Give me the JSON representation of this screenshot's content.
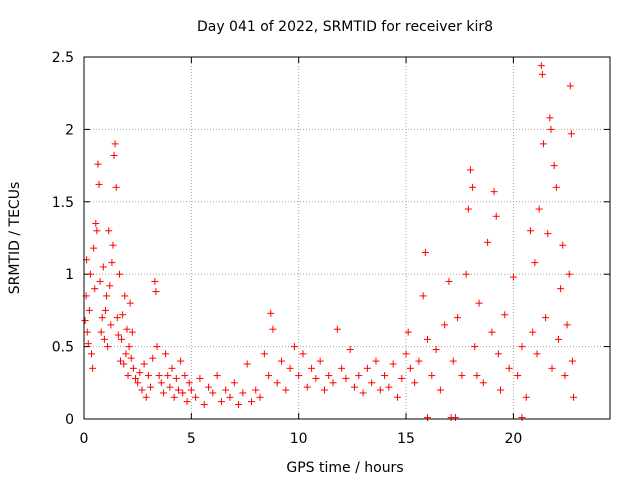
{
  "chart_data": {
    "type": "scatter",
    "title": "Day 041 of 2022, SRMTID for receiver kir8",
    "xlabel": "GPS time / hours",
    "ylabel": "SRMTID / TECUs",
    "xlim": [
      0,
      24.5
    ],
    "ylim": [
      0,
      2.5
    ],
    "xticks": [
      0,
      5,
      10,
      15,
      20
    ],
    "yticks": [
      0,
      0.5,
      1,
      1.5,
      2,
      2.5
    ],
    "xtick_labels": [
      "0",
      "5",
      "10",
      "15",
      "20"
    ],
    "ytick_labels": [
      "0",
      "0.5",
      "1",
      "1.5",
      "2",
      "2.5"
    ],
    "grid": true,
    "marker": "+",
    "color": "#ff0000",
    "series": [
      {
        "name": "SRMTID",
        "points": [
          [
            0.05,
            0.68
          ],
          [
            0.1,
            0.85
          ],
          [
            0.12,
            1.1
          ],
          [
            0.15,
            0.6
          ],
          [
            0.2,
            0.52
          ],
          [
            0.25,
            0.75
          ],
          [
            0.3,
            1.0
          ],
          [
            0.35,
            0.45
          ],
          [
            0.4,
            0.35
          ],
          [
            0.45,
            1.18
          ],
          [
            0.5,
            0.9
          ],
          [
            0.55,
            1.35
          ],
          [
            0.6,
            1.3
          ],
          [
            0.65,
            1.76
          ],
          [
            0.7,
            1.62
          ],
          [
            0.75,
            0.95
          ],
          [
            0.8,
            0.6
          ],
          [
            0.85,
            0.7
          ],
          [
            0.9,
            1.05
          ],
          [
            0.95,
            0.55
          ],
          [
            1.0,
            0.75
          ],
          [
            1.05,
            0.85
          ],
          [
            1.1,
            0.5
          ],
          [
            1.15,
            1.3
          ],
          [
            1.2,
            0.92
          ],
          [
            1.25,
            0.65
          ],
          [
            1.3,
            1.08
          ],
          [
            1.35,
            1.2
          ],
          [
            1.4,
            1.82
          ],
          [
            1.45,
            1.9
          ],
          [
            1.5,
            1.6
          ],
          [
            1.55,
            0.7
          ],
          [
            1.6,
            0.58
          ],
          [
            1.65,
            1.0
          ],
          [
            1.7,
            0.4
          ],
          [
            1.75,
            0.55
          ],
          [
            1.8,
            0.72
          ],
          [
            1.85,
            0.38
          ],
          [
            1.9,
            0.85
          ],
          [
            1.95,
            0.45
          ],
          [
            2.0,
            0.62
          ],
          [
            2.05,
            0.3
          ],
          [
            2.1,
            0.5
          ],
          [
            2.15,
            0.8
          ],
          [
            2.2,
            0.42
          ],
          [
            2.25,
            0.6
          ],
          [
            2.3,
            0.35
          ],
          [
            2.4,
            0.28
          ],
          [
            2.5,
            0.25
          ],
          [
            2.6,
            0.32
          ],
          [
            2.7,
            0.2
          ],
          [
            2.8,
            0.38
          ],
          [
            2.9,
            0.15
          ],
          [
            3.0,
            0.3
          ],
          [
            3.1,
            0.22
          ],
          [
            3.2,
            0.42
          ],
          [
            3.3,
            0.95
          ],
          [
            3.35,
            0.88
          ],
          [
            3.4,
            0.5
          ],
          [
            3.5,
            0.3
          ],
          [
            3.6,
            0.25
          ],
          [
            3.7,
            0.18
          ],
          [
            3.8,
            0.45
          ],
          [
            3.9,
            0.3
          ],
          [
            4.0,
            0.22
          ],
          [
            4.1,
            0.35
          ],
          [
            4.2,
            0.15
          ],
          [
            4.3,
            0.28
          ],
          [
            4.4,
            0.2
          ],
          [
            4.5,
            0.4
          ],
          [
            4.6,
            0.18
          ],
          [
            4.7,
            0.3
          ],
          [
            4.8,
            0.12
          ],
          [
            4.9,
            0.25
          ],
          [
            5.0,
            0.2
          ],
          [
            5.2,
            0.15
          ],
          [
            5.4,
            0.28
          ],
          [
            5.6,
            0.1
          ],
          [
            5.8,
            0.22
          ],
          [
            6.0,
            0.18
          ],
          [
            6.2,
            0.3
          ],
          [
            6.4,
            0.12
          ],
          [
            6.6,
            0.2
          ],
          [
            6.8,
            0.15
          ],
          [
            7.0,
            0.25
          ],
          [
            7.2,
            0.1
          ],
          [
            7.4,
            0.18
          ],
          [
            7.6,
            0.38
          ],
          [
            7.8,
            0.12
          ],
          [
            8.0,
            0.2
          ],
          [
            8.2,
            0.15
          ],
          [
            8.4,
            0.45
          ],
          [
            8.6,
            0.3
          ],
          [
            8.7,
            0.73
          ],
          [
            8.8,
            0.62
          ],
          [
            9.0,
            0.25
          ],
          [
            9.2,
            0.4
          ],
          [
            9.4,
            0.2
          ],
          [
            9.6,
            0.35
          ],
          [
            9.8,
            0.5
          ],
          [
            10.0,
            0.3
          ],
          [
            10.2,
            0.45
          ],
          [
            10.4,
            0.22
          ],
          [
            10.6,
            0.35
          ],
          [
            10.8,
            0.28
          ],
          [
            11.0,
            0.4
          ],
          [
            11.2,
            0.2
          ],
          [
            11.4,
            0.3
          ],
          [
            11.6,
            0.25
          ],
          [
            11.8,
            0.62
          ],
          [
            12.0,
            0.35
          ],
          [
            12.2,
            0.28
          ],
          [
            12.4,
            0.48
          ],
          [
            12.6,
            0.22
          ],
          [
            12.8,
            0.3
          ],
          [
            13.0,
            0.18
          ],
          [
            13.2,
            0.35
          ],
          [
            13.4,
            0.25
          ],
          [
            13.6,
            0.4
          ],
          [
            13.8,
            0.2
          ],
          [
            14.0,
            0.3
          ],
          [
            14.2,
            0.22
          ],
          [
            14.4,
            0.38
          ],
          [
            14.6,
            0.15
          ],
          [
            14.8,
            0.28
          ],
          [
            15.0,
            0.45
          ],
          [
            15.1,
            0.6
          ],
          [
            15.2,
            0.35
          ],
          [
            15.4,
            0.25
          ],
          [
            15.6,
            0.4
          ],
          [
            15.8,
            0.85
          ],
          [
            15.9,
            1.15
          ],
          [
            16.0,
            0.55
          ],
          [
            16.2,
            0.3
          ],
          [
            16.4,
            0.48
          ],
          [
            16.6,
            0.2
          ],
          [
            16.8,
            0.65
          ],
          [
            17.0,
            0.95
          ],
          [
            17.2,
            0.4
          ],
          [
            17.4,
            0.7
          ],
          [
            17.6,
            0.3
          ],
          [
            17.8,
            1.0
          ],
          [
            17.9,
            1.45
          ],
          [
            18.0,
            1.72
          ],
          [
            18.1,
            1.6
          ],
          [
            18.2,
            0.5
          ],
          [
            18.3,
            0.3
          ],
          [
            18.4,
            0.8
          ],
          [
            18.6,
            0.25
          ],
          [
            18.8,
            1.22
          ],
          [
            19.0,
            0.6
          ],
          [
            19.1,
            1.57
          ],
          [
            19.2,
            1.4
          ],
          [
            19.3,
            0.45
          ],
          [
            19.4,
            0.2
          ],
          [
            19.6,
            0.72
          ],
          [
            19.8,
            0.35
          ],
          [
            20.0,
            0.98
          ],
          [
            20.2,
            0.3
          ],
          [
            20.4,
            0.5
          ],
          [
            20.6,
            0.15
          ],
          [
            20.8,
            1.3
          ],
          [
            20.9,
            0.6
          ],
          [
            21.0,
            1.08
          ],
          [
            21.1,
            0.45
          ],
          [
            21.2,
            1.45
          ],
          [
            21.3,
            2.44
          ],
          [
            21.35,
            2.38
          ],
          [
            21.4,
            1.9
          ],
          [
            21.5,
            0.7
          ],
          [
            21.6,
            1.28
          ],
          [
            21.7,
            2.08
          ],
          [
            21.75,
            2.0
          ],
          [
            21.8,
            0.35
          ],
          [
            21.9,
            1.75
          ],
          [
            22.0,
            1.6
          ],
          [
            22.1,
            0.55
          ],
          [
            22.2,
            0.9
          ],
          [
            22.3,
            1.2
          ],
          [
            22.4,
            0.3
          ],
          [
            22.5,
            0.65
          ],
          [
            22.6,
            1.0
          ],
          [
            22.65,
            2.3
          ],
          [
            22.7,
            1.97
          ],
          [
            22.75,
            0.4
          ],
          [
            22.8,
            0.15
          ],
          [
            16.0,
            0.01
          ],
          [
            17.1,
            0.01
          ],
          [
            17.3,
            0.01
          ],
          [
            20.4,
            0.01
          ]
        ]
      }
    ]
  }
}
